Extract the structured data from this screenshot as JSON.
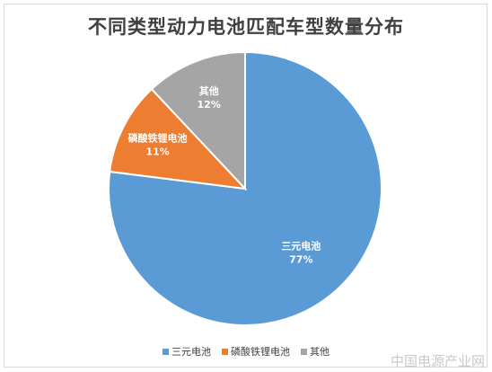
{
  "chart_data": {
    "type": "pie",
    "title": "不同类型动力电池匹配车型数量分布",
    "slices": [
      {
        "label": "三元电池",
        "value": 77,
        "value_label": "77%",
        "color": "#5b9bd5"
      },
      {
        "label": "磷酸铁锂电池",
        "value": 11,
        "value_label": "11%",
        "color": "#ed7d31"
      },
      {
        "label": "其他",
        "value": 12,
        "value_label": "12%",
        "color": "#a5a5a5"
      }
    ],
    "start": "12 o'clock",
    "direction": "clockwise",
    "legend_position": "bottom"
  },
  "watermark": "中国电源产业网"
}
